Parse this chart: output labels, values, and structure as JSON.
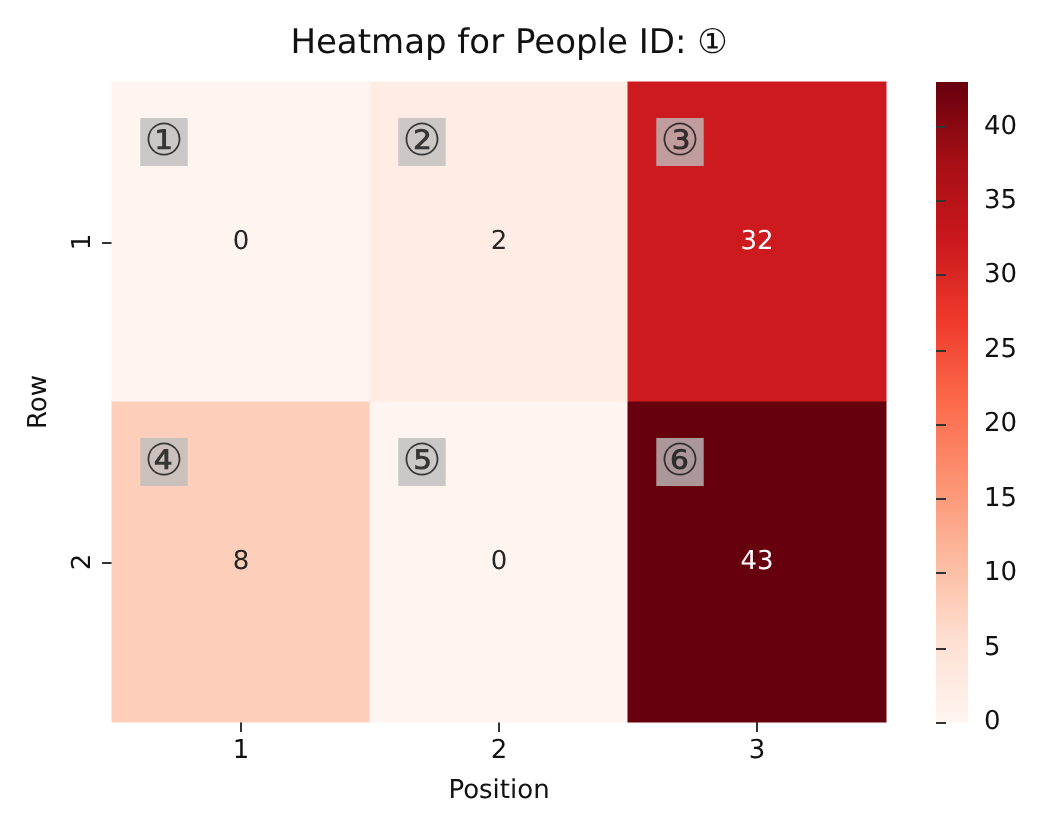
{
  "chart_data": {
    "type": "heatmap",
    "title": "Heatmap for People ID: ①",
    "xlabel": "Position",
    "ylabel": "Row",
    "categories": [
      "1",
      "2",
      "3"
    ],
    "y_categories": [
      "1",
      "2"
    ],
    "cells": [
      [
        0,
        2,
        32
      ],
      [
        8,
        0,
        43
      ]
    ],
    "data_labels": true,
    "clim": [
      0,
      43
    ],
    "cticks": [
      0,
      5,
      10,
      15,
      20,
      25,
      30,
      35,
      40
    ],
    "annotations": [
      "①",
      "②",
      "③",
      "④",
      "⑤",
      "⑥"
    ]
  }
}
